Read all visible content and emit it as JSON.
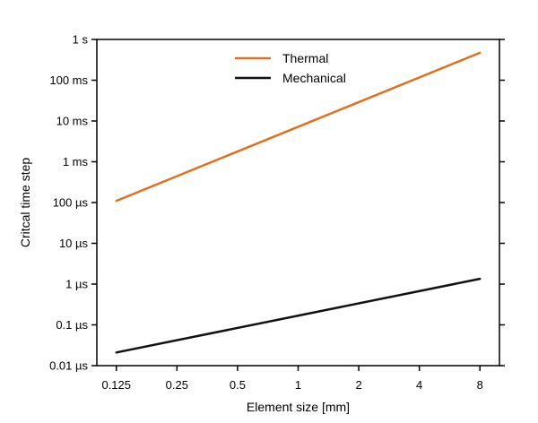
{
  "chart_data": {
    "type": "line",
    "title": "",
    "xlabel": "Element size [mm]",
    "ylabel": "Critcal time step",
    "x_scale": "log2",
    "y_scale": "log10",
    "xlim": [
      0.1,
      10
    ],
    "ylim": [
      1e-08,
      1
    ],
    "x_ticks": [
      {
        "value": 0.125,
        "label": "0.125"
      },
      {
        "value": 0.25,
        "label": "0.25"
      },
      {
        "value": 0.5,
        "label": "0.5"
      },
      {
        "value": 1,
        "label": "1"
      },
      {
        "value": 2,
        "label": "2"
      },
      {
        "value": 4,
        "label": "4"
      },
      {
        "value": 8,
        "label": "8"
      }
    ],
    "y_ticks": [
      {
        "value": 1e-08,
        "label": "0.01 µs"
      },
      {
        "value": 1e-07,
        "label": "0.1 µs"
      },
      {
        "value": 1e-06,
        "label": "1 µs"
      },
      {
        "value": 1e-05,
        "label": "10 µs"
      },
      {
        "value": 0.0001,
        "label": "100 µs"
      },
      {
        "value": 0.001,
        "label": "1 ms"
      },
      {
        "value": 0.01,
        "label": "10 ms"
      },
      {
        "value": 0.1,
        "label": "100 ms"
      },
      {
        "value": 1,
        "label": "1 s"
      }
    ],
    "grid": false,
    "legend_position": "top-center",
    "series": [
      {
        "name": "Thermal",
        "color": "#e07020",
        "x": [
          0.125,
          8
        ],
        "y": [
          0.00011,
          0.47
        ]
      },
      {
        "name": "Mechanical",
        "color": "#111111",
        "x": [
          0.125,
          8
        ],
        "y": [
          2.1e-08,
          1.35e-06
        ]
      }
    ]
  }
}
